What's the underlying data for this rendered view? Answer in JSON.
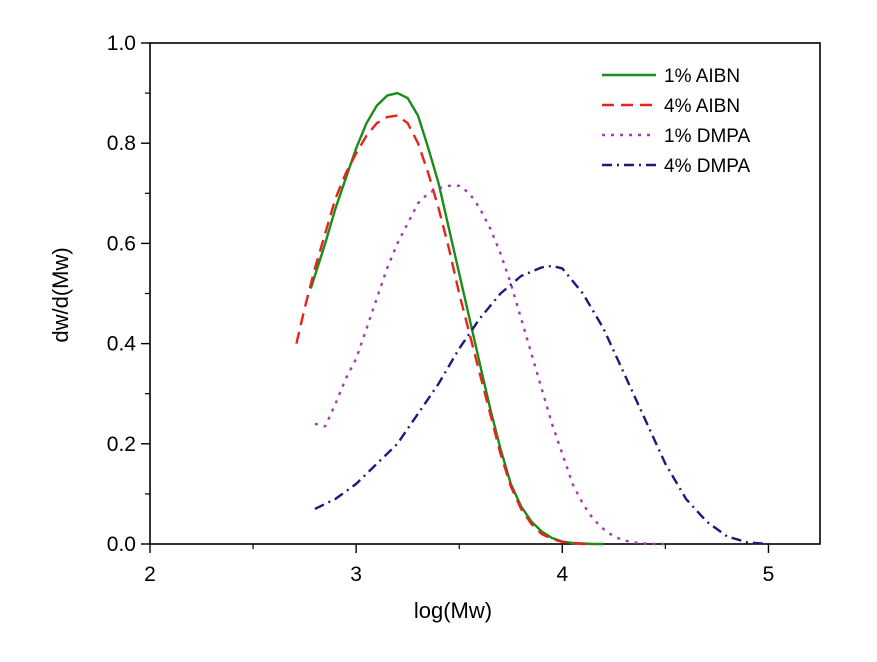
{
  "chart_data": {
    "type": "line",
    "title": "",
    "xlabel": "log(Mw)",
    "ylabel": "dw/d(Mw)",
    "xlim": [
      2,
      5.25
    ],
    "ylim": [
      0,
      1.0
    ],
    "x_ticks": [
      2,
      3,
      4,
      5
    ],
    "x_tick_labels": [
      "2",
      "3",
      "4",
      "5"
    ],
    "y_ticks": [
      0.0,
      0.2,
      0.4,
      0.6,
      0.8,
      1.0
    ],
    "y_tick_labels": [
      "0.0",
      "0.2",
      "0.4",
      "0.6",
      "0.8",
      "1.0"
    ],
    "legend_position": "top-right",
    "grid": false,
    "series": [
      {
        "name": "1% AIBN",
        "color": "#1a8c1a",
        "dash": "solid",
        "x": [
          2.78,
          2.85,
          2.9,
          2.95,
          3.0,
          3.05,
          3.1,
          3.15,
          3.2,
          3.25,
          3.3,
          3.35,
          3.4,
          3.45,
          3.5,
          3.55,
          3.6,
          3.65,
          3.7,
          3.75,
          3.8,
          3.85,
          3.9,
          3.95,
          4.0,
          4.05,
          4.1,
          4.15,
          4.2
        ],
        "y": [
          0.51,
          0.6,
          0.67,
          0.73,
          0.79,
          0.84,
          0.875,
          0.895,
          0.9,
          0.89,
          0.855,
          0.79,
          0.72,
          0.63,
          0.54,
          0.45,
          0.36,
          0.27,
          0.19,
          0.12,
          0.075,
          0.045,
          0.025,
          0.012,
          0.005,
          0.002,
          0.001,
          0.0,
          0.0
        ]
      },
      {
        "name": "4% AIBN",
        "color": "#e8231c",
        "dash": "dashed",
        "x": [
          2.71,
          2.75,
          2.8,
          2.85,
          2.9,
          2.95,
          3.0,
          3.05,
          3.1,
          3.15,
          3.2,
          3.25,
          3.3,
          3.35,
          3.4,
          3.45,
          3.5,
          3.55,
          3.6,
          3.65,
          3.7,
          3.75,
          3.8,
          3.85,
          3.9,
          3.95,
          4.0,
          4.05,
          4.1,
          4.15
        ],
        "y": [
          0.4,
          0.47,
          0.55,
          0.62,
          0.69,
          0.74,
          0.78,
          0.815,
          0.84,
          0.852,
          0.855,
          0.84,
          0.8,
          0.74,
          0.67,
          0.59,
          0.5,
          0.42,
          0.34,
          0.26,
          0.18,
          0.115,
          0.07,
          0.04,
          0.02,
          0.01,
          0.004,
          0.002,
          0.0,
          0.0
        ]
      },
      {
        "name": "1% DMPA",
        "color": "#a03cb4",
        "dash": "dotted",
        "x": [
          2.8,
          2.85,
          2.9,
          2.95,
          3.0,
          3.05,
          3.1,
          3.15,
          3.2,
          3.25,
          3.3,
          3.35,
          3.4,
          3.45,
          3.5,
          3.55,
          3.6,
          3.65,
          3.7,
          3.75,
          3.8,
          3.85,
          3.9,
          3.95,
          4.0,
          4.05,
          4.1,
          4.15,
          4.2,
          4.25,
          4.3,
          4.35,
          4.4,
          4.45,
          4.5
        ],
        "y": [
          0.24,
          0.235,
          0.28,
          0.33,
          0.37,
          0.43,
          0.49,
          0.55,
          0.6,
          0.64,
          0.68,
          0.7,
          0.71,
          0.715,
          0.715,
          0.7,
          0.67,
          0.63,
          0.58,
          0.52,
          0.45,
          0.38,
          0.31,
          0.24,
          0.18,
          0.12,
          0.08,
          0.05,
          0.03,
          0.015,
          0.007,
          0.003,
          0.001,
          0.0,
          0.0
        ]
      },
      {
        "name": "4% DMPA",
        "color": "#1a1a80",
        "dash": "dashdot",
        "x": [
          2.8,
          2.9,
          3.0,
          3.1,
          3.2,
          3.3,
          3.4,
          3.5,
          3.6,
          3.7,
          3.8,
          3.9,
          3.95,
          4.0,
          4.1,
          4.2,
          4.3,
          4.4,
          4.5,
          4.6,
          4.7,
          4.8,
          4.9,
          5.0
        ],
        "y": [
          0.07,
          0.09,
          0.12,
          0.16,
          0.2,
          0.26,
          0.32,
          0.39,
          0.45,
          0.5,
          0.535,
          0.552,
          0.555,
          0.55,
          0.5,
          0.43,
          0.34,
          0.25,
          0.16,
          0.09,
          0.045,
          0.015,
          0.003,
          0.0
        ]
      }
    ]
  }
}
